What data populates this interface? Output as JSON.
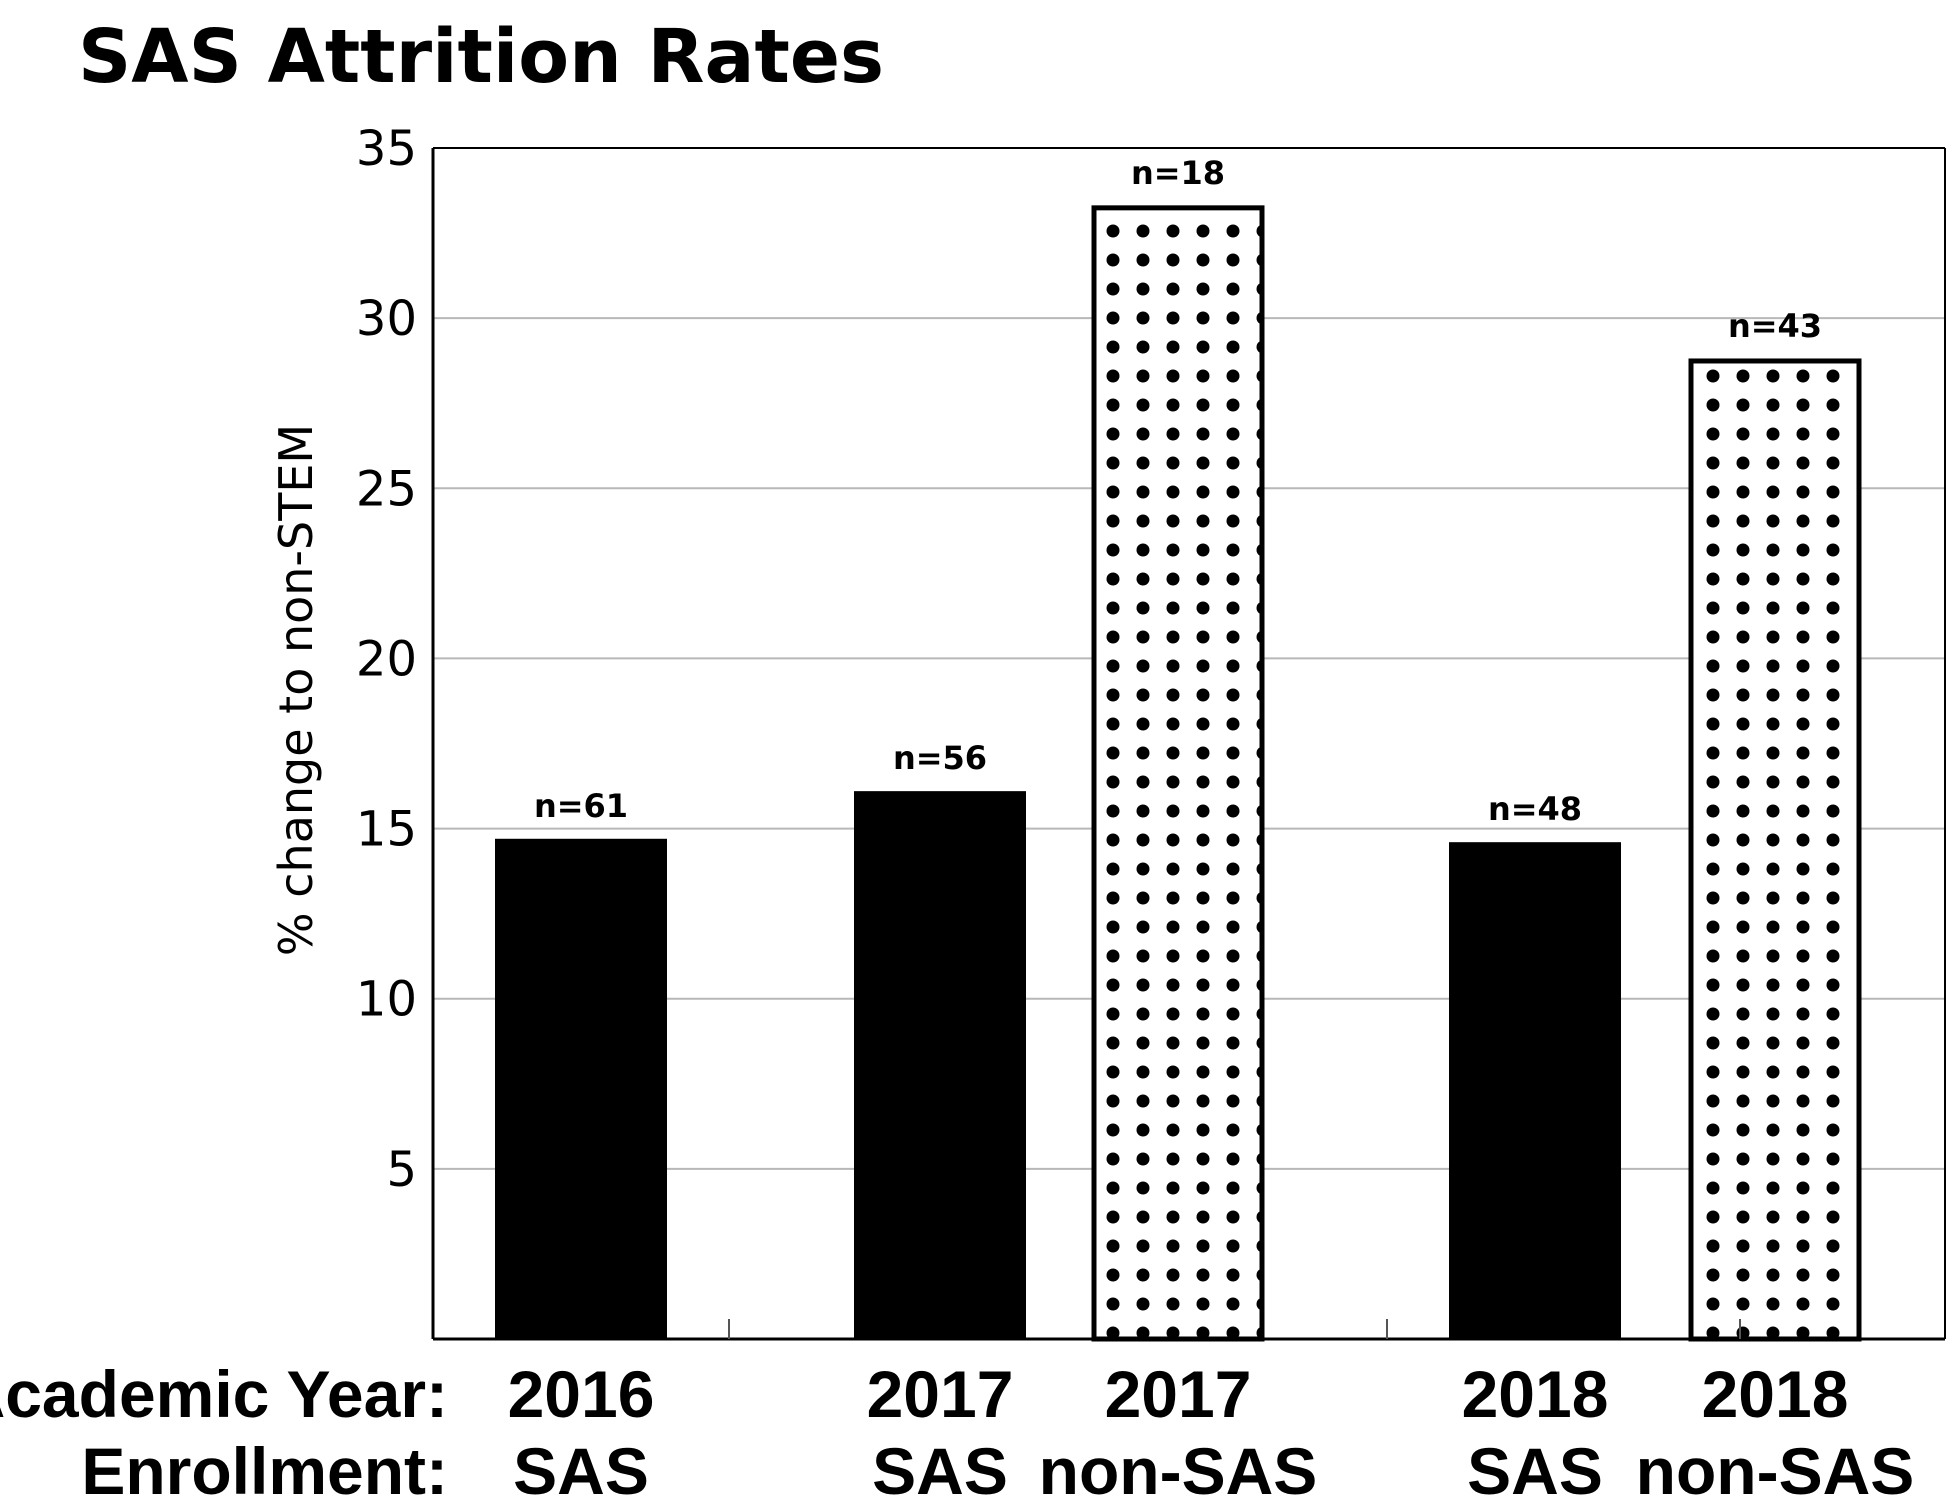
{
  "chart_data": {
    "type": "bar",
    "title": "SAS Attrition Rates",
    "ylabel": "% change to non-STEM",
    "xlabel": "",
    "ylim": [
      0,
      35
    ],
    "yticks": [
      5,
      10,
      15,
      20,
      25,
      30,
      35
    ],
    "grid": true,
    "row_headers": [
      "Academic Year:",
      "Enrollment:"
    ],
    "bars": [
      {
        "year": "2016",
        "enrollment": "SAS",
        "value": 14.7,
        "n_label": "n=61",
        "style": "solid",
        "color": "#000000"
      },
      {
        "year": "2017",
        "enrollment": "SAS",
        "value": 16.1,
        "n_label": "n=56",
        "style": "solid",
        "color": "#000000"
      },
      {
        "year": "2017",
        "enrollment": "non-SAS",
        "value": 33.3,
        "n_label": "n=18",
        "style": "dotted",
        "color": "#000000"
      },
      {
        "year": "2018",
        "enrollment": "SAS",
        "value": 14.6,
        "n_label": "n=48",
        "style": "solid",
        "color": "#000000"
      },
      {
        "year": "2018",
        "enrollment": "non-SAS",
        "value": 28.8,
        "n_label": "n=43",
        "style": "dotted",
        "color": "#000000"
      }
    ]
  }
}
